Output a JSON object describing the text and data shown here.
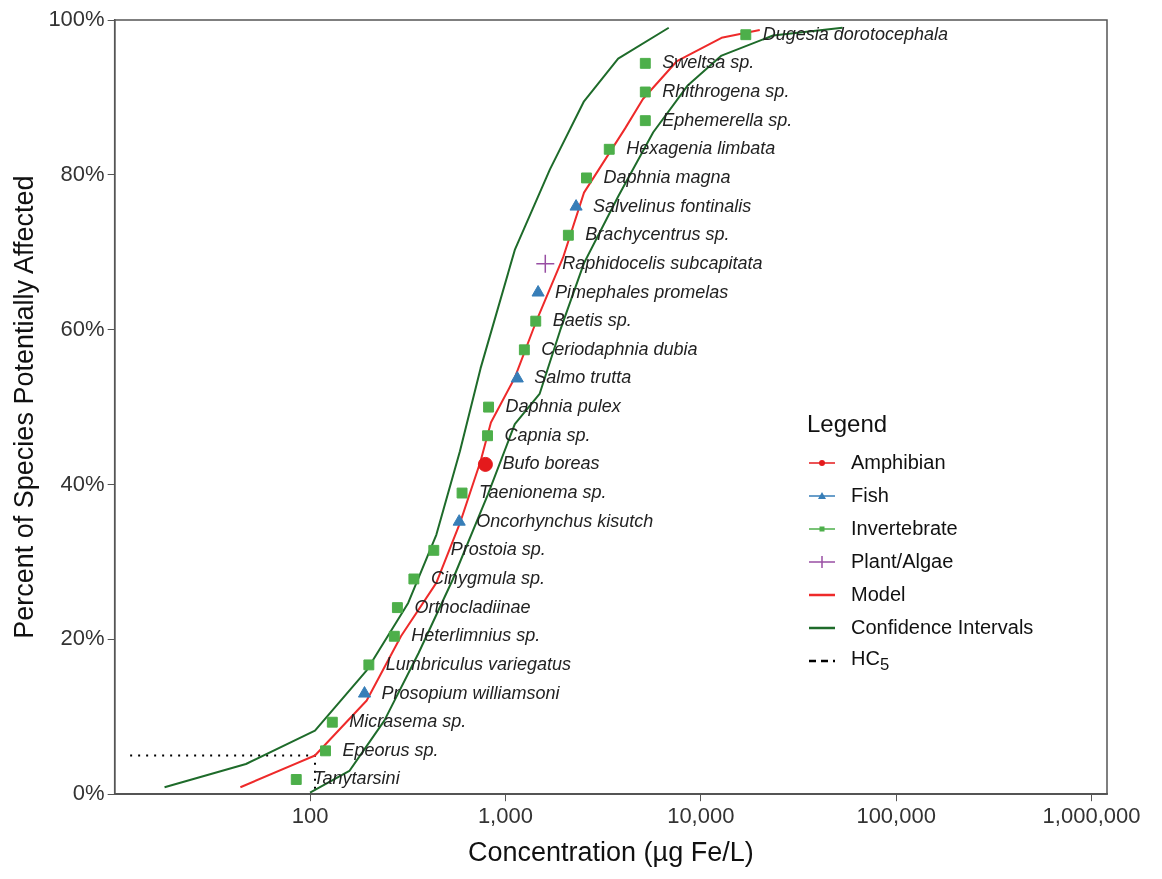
{
  "chart_data": {
    "type": "scatter",
    "xlabel": "Concentration (µg Fe/L)",
    "ylabel": "Percent of Species Potentially Affected",
    "legend_title": "Legend",
    "legend": "right",
    "grid": false,
    "log": "x",
    "xlim": [
      10,
      1200000
    ],
    "xticks": [
      100,
      {
        "value": 1000,
        "label": "1,000"
      },
      {
        "value": 10000,
        "label": "10,000"
      },
      {
        "value": 100000,
        "label": "100,000"
      },
      {
        "value": 1000000,
        "label": "1,000,000"
      }
    ],
    "ylim": [
      0,
      100
    ],
    "yticks": [
      {
        "value": 0,
        "label": "0%"
      },
      {
        "value": 20,
        "label": "20%"
      },
      {
        "value": 40,
        "label": "40%"
      },
      {
        "value": 60,
        "label": "60%"
      },
      {
        "value": 80,
        "label": "80%"
      },
      {
        "value": 100,
        "label": "100%"
      }
    ],
    "series": [
      {
        "name": "Amphibian",
        "type": "scatter",
        "marker": "circle",
        "color": "#e41a1c",
        "x": [
          790
        ],
        "values": [
          42.6
        ]
      },
      {
        "name": "Fish",
        "type": "scatter",
        "marker": "triangle",
        "color": "#377eb8",
        "x": [
          190,
          580,
          1150,
          1470,
          2300
        ],
        "values": [
          13,
          35.2,
          53.7,
          64.8,
          75.9
        ]
      },
      {
        "name": "Invertebrate",
        "type": "scatter",
        "marker": "square",
        "color": "#4daf4a",
        "x": [
          85,
          120,
          130,
          200,
          270,
          280,
          340,
          430,
          600,
          810,
          820,
          1250,
          1430,
          2100,
          2600,
          3400,
          5200,
          5200,
          5200,
          17000
        ],
        "values": [
          1.9,
          5.6,
          9.3,
          16.7,
          20.4,
          24.1,
          27.8,
          31.5,
          38.9,
          46.3,
          50,
          57.4,
          61.1,
          72.2,
          79.6,
          83.3,
          87,
          90.7,
          94.4,
          98.1
        ]
      },
      {
        "name": "Plant/Algae",
        "type": "scatter",
        "marker": "cross",
        "color": "#984ea3",
        "x": [
          1600
        ],
        "values": [
          68.5
        ]
      },
      {
        "name": "Model",
        "type": "line",
        "marker": "none",
        "color": "#ee2a2a",
        "x": [
          44,
          106,
          195,
          292,
          443,
          585,
          746,
          843,
          1117,
          1424,
          1978,
          2525,
          4100,
          5058,
          7555,
          12770,
          20040
        ],
        "values": [
          0.9,
          5,
          12.1,
          20.4,
          27.3,
          35,
          43,
          48,
          53.8,
          60.8,
          69.4,
          77.7,
          86,
          89.8,
          94.7,
          97.7,
          98.7
        ]
      },
      {
        "name": "Confidence Intervals",
        "type": "line",
        "marker": "none",
        "color": "#1e6b2a",
        "x": [
          18,
          47,
          106,
          195,
          318,
          443,
          585,
          746,
          1117,
          1690,
          2525,
          3776,
          6855
        ],
        "values": [
          0.9,
          3.9,
          8.2,
          16,
          24.7,
          33.5,
          44.3,
          55,
          70.3,
          80.7,
          89.5,
          95,
          99
        ]
      },
      {
        "type": "line",
        "marker": "none",
        "color": "#1e6b2a",
        "x": [
          100,
          159,
          240,
          359,
          537,
          813,
          1117,
          1496,
          1906,
          2525,
          3776,
          5710,
          8540,
          12770,
          23440,
          53100
        ],
        "values": [
          0.2,
          3,
          9.5,
          18.2,
          27.7,
          38.7,
          47.8,
          51.7,
          59.9,
          68.6,
          77.2,
          85.5,
          91.5,
          95.4,
          98,
          99
        ]
      },
      {
        "name": "HC$_{5}$",
        "type": "line",
        "marker": "none",
        "line_style": "dotted",
        "color": "#000000",
        "x": [
          12,
          106,
          106
        ],
        "values": [
          5,
          5,
          0
        ]
      }
    ],
    "annotations": [
      {
        "text": "Tanytarsini",
        "x": 85,
        "y": 1.9
      },
      {
        "text": "Epeorus sp.",
        "x": 120,
        "y": 5.6
      },
      {
        "text": "Micrasema sp.",
        "x": 130,
        "y": 9.3
      },
      {
        "text": "Prosopium williamsoni",
        "x": 190,
        "y": 13
      },
      {
        "text": "Lumbriculus variegatus",
        "x": 200,
        "y": 16.7
      },
      {
        "text": "Heterlimnius sp.",
        "x": 270,
        "y": 20.4
      },
      {
        "text": "Orthocladiinae",
        "x": 280,
        "y": 24.1
      },
      {
        "text": "Cinygmula sp.",
        "x": 340,
        "y": 27.8
      },
      {
        "text": "Prostoia sp.",
        "x": 430,
        "y": 31.5
      },
      {
        "text": "Oncorhynchus kisutch",
        "x": 580,
        "y": 35.2
      },
      {
        "text": "Taenionema sp.",
        "x": 600,
        "y": 38.9
      },
      {
        "text": "Bufo boreas",
        "x": 790,
        "y": 42.6
      },
      {
        "text": "Capnia sp.",
        "x": 810,
        "y": 46.3
      },
      {
        "text": "Daphnia pulex",
        "x": 820,
        "y": 50
      },
      {
        "text": "Salmo trutta",
        "x": 1150,
        "y": 53.7
      },
      {
        "text": "Ceriodaphnia dubia",
        "x": 1250,
        "y": 57.4
      },
      {
        "text": "Baetis sp.",
        "x": 1430,
        "y": 61.1
      },
      {
        "text": "Pimephales promelas",
        "x": 1470,
        "y": 64.8
      },
      {
        "text": "Raphidocelis subcapitata",
        "x": 1600,
        "y": 68.5
      },
      {
        "text": "Brachycentrus sp.",
        "x": 2100,
        "y": 72.2
      },
      {
        "text": "Salvelinus fontinalis",
        "x": 2300,
        "y": 75.9
      },
      {
        "text": "Daphnia magna",
        "x": 2600,
        "y": 79.6
      },
      {
        "text": "Hexagenia limbata",
        "x": 3400,
        "y": 83.3
      },
      {
        "text": "Ephemerella sp.",
        "x": 5200,
        "y": 87
      },
      {
        "text": "Rhithrogena sp.",
        "x": 5200,
        "y": 90.7
      },
      {
        "text": "Sweltsa sp.",
        "x": 5200,
        "y": 94.4
      },
      {
        "text": "Dugesia dorotocephala",
        "x": 17000,
        "y": 98.1
      }
    ]
  }
}
